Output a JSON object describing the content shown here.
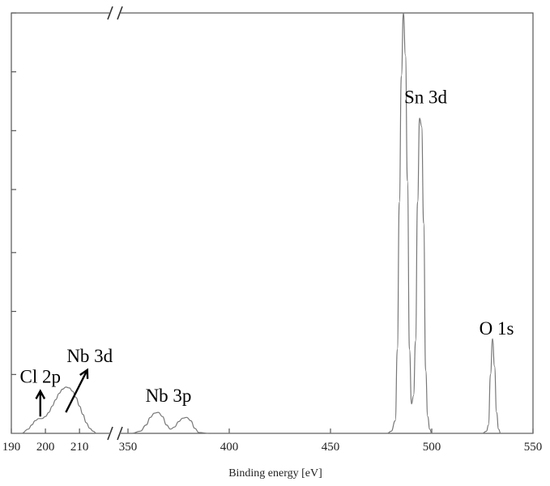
{
  "chart_data": {
    "type": "line",
    "title": "",
    "xlabel": "Binding energy [eV]",
    "ylabel": "",
    "broken_axis": true,
    "x_segments": [
      {
        "range": [
          190,
          219
        ],
        "ticks": [
          190,
          200,
          210
        ],
        "tick_labels": [
          "190",
          "200",
          "210"
        ]
      },
      {
        "range": [
          346,
          550
        ],
        "ticks": [
          350,
          400,
          450,
          500,
          550
        ],
        "tick_labels": [
          "350",
          "400",
          "450",
          "500",
          "550"
        ]
      }
    ],
    "ylim": [
      0,
      1.0
    ],
    "y_ticks": [
      0.14,
      0.29,
      0.43,
      0.58,
      0.72,
      0.86,
      1.0
    ],
    "y_tick_labels_shown": false,
    "grid": false,
    "series": [
      {
        "x": [
          190,
          193,
          195,
          196,
          197,
          198,
          199,
          200,
          201,
          202,
          203,
          204,
          205,
          206,
          207,
          208,
          209,
          210,
          211,
          212,
          213,
          214,
          215,
          216,
          217,
          218,
          219
        ],
        "y": [
          0.0,
          0.0,
          0.01,
          0.02,
          0.03,
          0.035,
          0.035,
          0.04,
          0.05,
          0.065,
          0.08,
          0.095,
          0.105,
          0.11,
          0.108,
          0.1,
          0.085,
          0.065,
          0.045,
          0.025,
          0.012,
          0.005,
          0.0,
          0.0,
          0.0,
          0.0,
          0.0
        ]
      },
      {
        "x": [
          346,
          352,
          356,
          359,
          361,
          363,
          365,
          367,
          369,
          371,
          373,
          375,
          377,
          379,
          381,
          383,
          385,
          390,
          400,
          420,
          440,
          460,
          470,
          478,
          480,
          482,
          483,
          484,
          485,
          486,
          487,
          488,
          489,
          490,
          491,
          492,
          493,
          494,
          495,
          496,
          497,
          498,
          499,
          500,
          502,
          505,
          510,
          515,
          520,
          525,
          527,
          528,
          529,
          530,
          531,
          532,
          533,
          534,
          536,
          540,
          550
        ],
        "y": [
          0.0,
          0.0,
          0.005,
          0.02,
          0.038,
          0.048,
          0.05,
          0.04,
          0.02,
          0.01,
          0.015,
          0.028,
          0.036,
          0.038,
          0.03,
          0.012,
          0.002,
          0.0,
          0.0,
          0.0,
          0.0,
          0.0,
          0.0,
          0.0,
          0.005,
          0.03,
          0.2,
          0.55,
          0.85,
          1.0,
          0.9,
          0.6,
          0.2,
          0.07,
          0.09,
          0.22,
          0.55,
          0.75,
          0.73,
          0.5,
          0.15,
          0.04,
          0.01,
          0.0,
          0.0,
          0.0,
          0.0,
          0.0,
          0.0,
          0.0,
          0.005,
          0.02,
          0.14,
          0.225,
          0.16,
          0.05,
          0.01,
          0.0,
          0.0,
          0.0,
          0.0
        ]
      }
    ],
    "annotations": [
      {
        "text": "Cl 2p",
        "x": 198.5,
        "y": 0.12,
        "arrow_to": {
          "x": 198.5,
          "y": 0.04
        }
      },
      {
        "text": "Nb 3d",
        "x": 213,
        "y": 0.17,
        "arrow_to": {
          "x": 206,
          "y": 0.05
        }
      },
      {
        "text": "Nb 3p",
        "x": 370,
        "y": 0.075
      },
      {
        "text": "Sn 3d",
        "x": 497,
        "y": 0.785
      },
      {
        "text": "O 1s",
        "x": 532,
        "y": 0.235
      }
    ]
  }
}
